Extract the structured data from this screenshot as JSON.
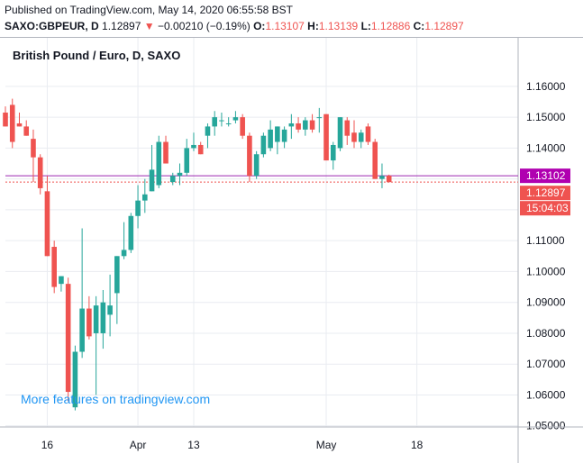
{
  "header": {
    "published": "Published on TradingView.com, May 14, 2020 06:55:58 BST",
    "symbol": "SAXO:GBPEUR, D",
    "last": "1.12897",
    "arrow": "▼",
    "change": "−0.00210 (−0.19%)",
    "o_label": "O:",
    "o_value": "1.13107",
    "h_label": "H:",
    "h_value": "1.13139",
    "l_label": "L:",
    "l_value": "1.12886",
    "c_label": "C:",
    "c_value": "1.12897"
  },
  "watermark": "More features on tradingview.com",
  "colors": {
    "up": "#26a69a",
    "down": "#ef5350",
    "grid": "#e9ecf1",
    "axis": "#b2b5be",
    "line": "#9c27b0",
    "label_purple": "#b000b0",
    "watermark": "#2196f3"
  },
  "chart_data": {
    "type": "candlestick",
    "title": "British Pound / Euro, D, SAXO",
    "x_tick_labels": [
      {
        "label": "16",
        "index": 6
      },
      {
        "label": "Apr",
        "index": 19
      },
      {
        "label": "13",
        "index": 27
      },
      {
        "label": "May",
        "index": 46
      },
      {
        "label": "18",
        "index": 59
      }
    ],
    "y_tick_labels": [
      "1.16000",
      "1.15000",
      "1.14000",
      "1.13000",
      "1.12000",
      "1.11000",
      "1.10000",
      "1.09000",
      "1.08000",
      "1.07000",
      "1.06000",
      "1.05000"
    ],
    "ylim": [
      1.04,
      1.1658
    ],
    "price_lines": [
      {
        "label": "1.13102",
        "value": 1.13102,
        "style": "solid",
        "color": "#9c27b0",
        "bg": "#b000b0"
      },
      {
        "label": "1.12897",
        "value": 1.12897,
        "style": "dotted",
        "color": "#ef5350",
        "bg": "#ef5350"
      }
    ],
    "countdown_label": "15:04:03",
    "candles": [
      {
        "o": 1.1515,
        "h": 1.1535,
        "l": 1.147,
        "c": 1.147
      },
      {
        "o": 1.154,
        "h": 1.156,
        "l": 1.14,
        "c": 1.142
      },
      {
        "o": 1.148,
        "h": 1.1515,
        "l": 1.147,
        "c": 1.147
      },
      {
        "o": 1.147,
        "h": 1.149,
        "l": 1.144,
        "c": 1.144
      },
      {
        "o": 1.143,
        "h": 1.146,
        "l": 1.129,
        "c": 1.137
      },
      {
        "o": 1.137,
        "h": 1.138,
        "l": 1.125,
        "c": 1.127
      },
      {
        "o": 1.126,
        "h": 1.131,
        "l": 1.105,
        "c": 1.105
      },
      {
        "o": 1.108,
        "h": 1.11,
        "l": 1.093,
        "c": 1.095
      },
      {
        "o": 1.096,
        "h": 1.0985,
        "l": 1.0935,
        "c": 1.0985
      },
      {
        "o": 1.096,
        "h": 1.098,
        "l": 1.058,
        "c": 1.061
      },
      {
        "o": 1.056,
        "h": 1.076,
        "l": 1.055,
        "c": 1.074
      },
      {
        "o": 1.074,
        "h": 1.114,
        "l": 1.072,
        "c": 1.088
      },
      {
        "o": 1.088,
        "h": 1.092,
        "l": 1.078,
        "c": 1.079
      },
      {
        "o": 1.08,
        "h": 1.092,
        "l": 1.06,
        "c": 1.089
      },
      {
        "o": 1.08,
        "h": 1.094,
        "l": 1.075,
        "c": 1.09
      },
      {
        "o": 1.086,
        "h": 1.099,
        "l": 1.079,
        "c": 1.089
      },
      {
        "o": 1.093,
        "h": 1.105,
        "l": 1.083,
        "c": 1.105
      },
      {
        "o": 1.105,
        "h": 1.116,
        "l": 1.104,
        "c": 1.107
      },
      {
        "o": 1.107,
        "h": 1.119,
        "l": 1.106,
        "c": 1.118
      },
      {
        "o": 1.118,
        "h": 1.128,
        "l": 1.114,
        "c": 1.123
      },
      {
        "o": 1.123,
        "h": 1.13,
        "l": 1.119,
        "c": 1.125
      },
      {
        "o": 1.126,
        "h": 1.141,
        "l": 1.126,
        "c": 1.133
      },
      {
        "o": 1.128,
        "h": 1.144,
        "l": 1.127,
        "c": 1.142
      },
      {
        "o": 1.142,
        "h": 1.144,
        "l": 1.135,
        "c": 1.135
      },
      {
        "o": 1.129,
        "h": 1.132,
        "l": 1.128,
        "c": 1.131
      },
      {
        "o": 1.131,
        "h": 1.135,
        "l": 1.128,
        "c": 1.132
      },
      {
        "o": 1.132,
        "h": 1.143,
        "l": 1.131,
        "c": 1.14
      },
      {
        "o": 1.14,
        "h": 1.145,
        "l": 1.139,
        "c": 1.141
      },
      {
        "o": 1.141,
        "h": 1.142,
        "l": 1.138,
        "c": 1.138
      },
      {
        "o": 1.144,
        "h": 1.148,
        "l": 1.14,
        "c": 1.147
      },
      {
        "o": 1.147,
        "h": 1.152,
        "l": 1.144,
        "c": 1.15
      },
      {
        "o": 1.149,
        "h": 1.1515,
        "l": 1.147,
        "c": 1.149
      },
      {
        "o": 1.148,
        "h": 1.15,
        "l": 1.147,
        "c": 1.148
      },
      {
        "o": 1.149,
        "h": 1.152,
        "l": 1.148,
        "c": 1.15
      },
      {
        "o": 1.15,
        "h": 1.151,
        "l": 1.143,
        "c": 1.144
      },
      {
        "o": 1.144,
        "h": 1.145,
        "l": 1.129,
        "c": 1.131
      },
      {
        "o": 1.131,
        "h": 1.139,
        "l": 1.13,
        "c": 1.138
      },
      {
        "o": 1.138,
        "h": 1.145,
        "l": 1.137,
        "c": 1.144
      },
      {
        "o": 1.14,
        "h": 1.149,
        "l": 1.139,
        "c": 1.146
      },
      {
        "o": 1.142,
        "h": 1.147,
        "l": 1.138,
        "c": 1.147
      },
      {
        "o": 1.142,
        "h": 1.147,
        "l": 1.14,
        "c": 1.146
      },
      {
        "o": 1.147,
        "h": 1.151,
        "l": 1.143,
        "c": 1.148
      },
      {
        "o": 1.148,
        "h": 1.15,
        "l": 1.145,
        "c": 1.146
      },
      {
        "o": 1.146,
        "h": 1.15,
        "l": 1.144,
        "c": 1.149
      },
      {
        "o": 1.149,
        "h": 1.151,
        "l": 1.145,
        "c": 1.146
      },
      {
        "o": 1.15,
        "h": 1.153,
        "l": 1.145,
        "c": 1.15
      },
      {
        "o": 1.151,
        "h": 1.151,
        "l": 1.136,
        "c": 1.136
      },
      {
        "o": 1.136,
        "h": 1.142,
        "l": 1.133,
        "c": 1.141
      },
      {
        "o": 1.14,
        "h": 1.15,
        "l": 1.139,
        "c": 1.15
      },
      {
        "o": 1.149,
        "h": 1.15,
        "l": 1.141,
        "c": 1.144
      },
      {
        "o": 1.145,
        "h": 1.149,
        "l": 1.14,
        "c": 1.142
      },
      {
        "o": 1.142,
        "h": 1.146,
        "l": 1.14,
        "c": 1.145
      },
      {
        "o": 1.147,
        "h": 1.148,
        "l": 1.141,
        "c": 1.142
      },
      {
        "o": 1.142,
        "h": 1.143,
        "l": 1.13,
        "c": 1.13
      },
      {
        "o": 1.13,
        "h": 1.135,
        "l": 1.127,
        "c": 1.131
      },
      {
        "o": 1.13107,
        "h": 1.13139,
        "l": 1.12886,
        "c": 1.12897
      }
    ]
  }
}
